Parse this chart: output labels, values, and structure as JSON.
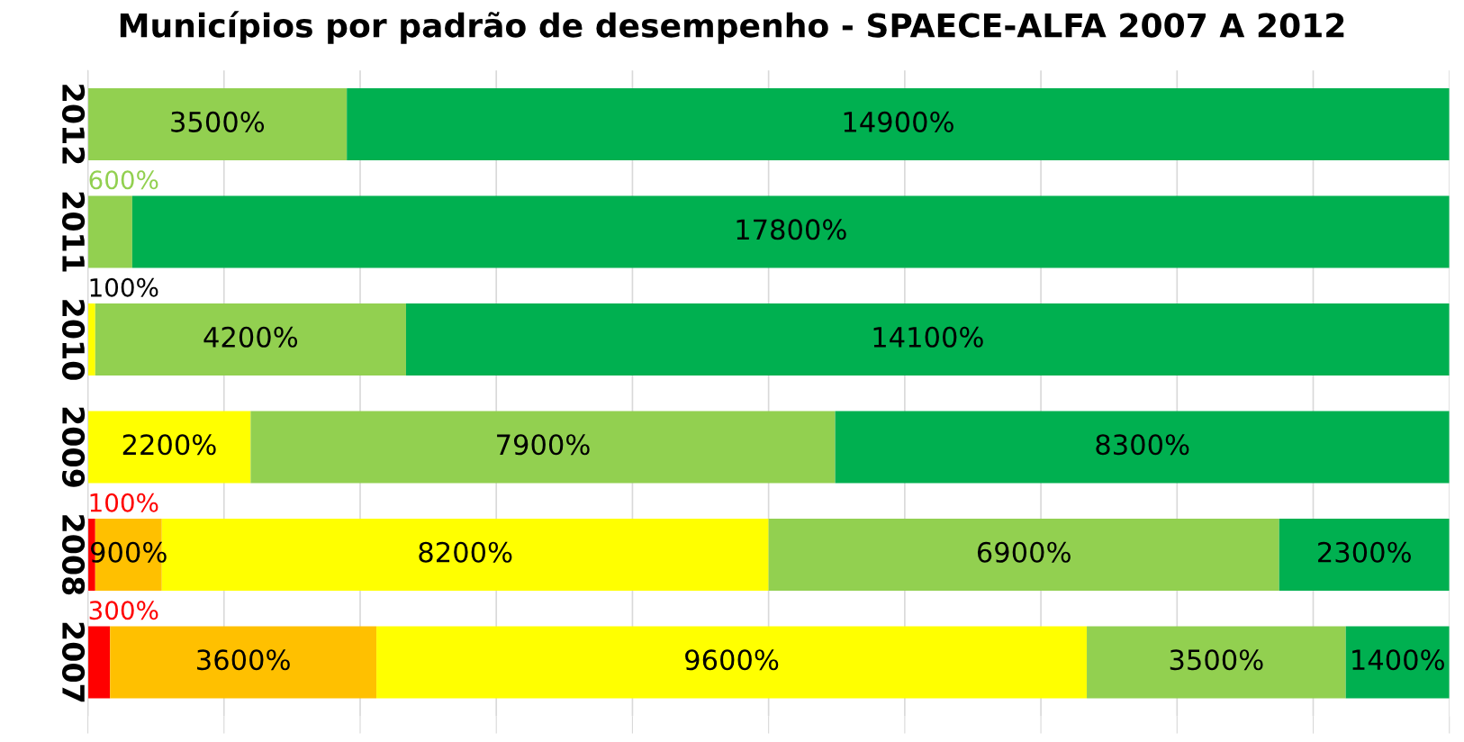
{
  "chart_data": {
    "type": "bar",
    "orientation": "horizontal",
    "stacked": true,
    "title": "Municípios por padrão de desempenho - SPAECE-ALFA 2007 A 2012",
    "categories": [
      "2012",
      "2011",
      "2010",
      "2009",
      "2008",
      "2007"
    ],
    "series": [
      {
        "color": "#ff0000",
        "values": [
          0,
          0,
          0,
          0,
          1,
          3
        ],
        "value_labels": [
          null,
          null,
          null,
          null,
          "100%",
          "300%"
        ]
      },
      {
        "color": "#ffc000",
        "values": [
          0,
          0,
          0,
          0,
          9,
          36
        ],
        "value_labels": [
          null,
          null,
          null,
          null,
          "900%",
          "3600%"
        ]
      },
      {
        "color": "#ffff00",
        "values": [
          0,
          0,
          1,
          22,
          82,
          96
        ],
        "value_labels": [
          null,
          null,
          "100%",
          "2200%",
          "8200%",
          "9600%"
        ]
      },
      {
        "color": "#92d050",
        "values": [
          35,
          6,
          42,
          79,
          69,
          35
        ],
        "value_labels": [
          "3500%",
          "600%",
          "4200%",
          "7900%",
          "6900%",
          "3500%"
        ]
      },
      {
        "color": "#00b050",
        "values": [
          149,
          178,
          141,
          83,
          23,
          14
        ],
        "value_labels": [
          "14900%",
          "17800%",
          "14100%",
          "8300%",
          "2300%",
          "1400%"
        ]
      }
    ],
    "xlim": [
      0,
      184
    ],
    "xticks": [
      {
        "value": 0,
        "label": null
      },
      {
        "value": 18.4,
        "label": null
      },
      {
        "value": 36.8,
        "label": null
      },
      {
        "value": 55.2,
        "label": null
      },
      {
        "value": 73.6,
        "label": null
      },
      {
        "value": 92,
        "label": null
      },
      {
        "value": 110.4,
        "label": null
      },
      {
        "value": 128.8,
        "label": null
      },
      {
        "value": 147.2,
        "label": null
      },
      {
        "value": 165.6,
        "label": null
      },
      {
        "value": 184,
        "label": null
      }
    ],
    "tick_labels": "y",
    "grid": "x",
    "legend": false
  }
}
